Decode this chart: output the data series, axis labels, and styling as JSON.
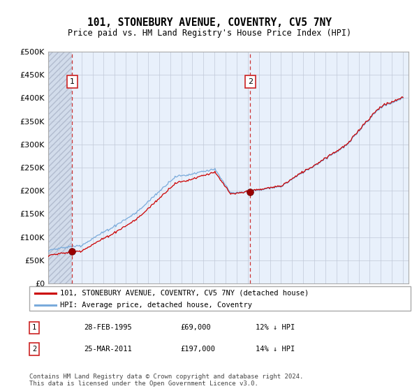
{
  "title": "101, STONEBURY AVENUE, COVENTRY, CV5 7NY",
  "subtitle": "Price paid vs. HM Land Registry's House Price Index (HPI)",
  "ylabel_ticks": [
    0,
    50000,
    100000,
    150000,
    200000,
    250000,
    300000,
    350000,
    400000,
    450000,
    500000
  ],
  "ylabel_labels": [
    "£0",
    "£50K",
    "£100K",
    "£150K",
    "£200K",
    "£250K",
    "£300K",
    "£350K",
    "£400K",
    "£450K",
    "£500K"
  ],
  "xlim": [
    1993.0,
    2025.5
  ],
  "ylim": [
    0,
    500000
  ],
  "sale1_x": 1995.16,
  "sale1_y": 69000,
  "sale2_x": 2011.23,
  "sale2_y": 197000,
  "plot_bg": "#e8f0fb",
  "grid_color": "#c0c8d8",
  "red_line_color": "#cc0000",
  "blue_line_color": "#7aabdb",
  "legend_label1": "101, STONEBURY AVENUE, COVENTRY, CV5 7NY (detached house)",
  "legend_label2": "HPI: Average price, detached house, Coventry",
  "footnote": "Contains HM Land Registry data © Crown copyright and database right 2024.\nThis data is licensed under the Open Government Licence v3.0.",
  "table_row1": [
    "1",
    "28-FEB-1995",
    "£69,000",
    "12% ↓ HPI"
  ],
  "table_row2": [
    "2",
    "25-MAR-2011",
    "£197,000",
    "14% ↓ HPI"
  ]
}
